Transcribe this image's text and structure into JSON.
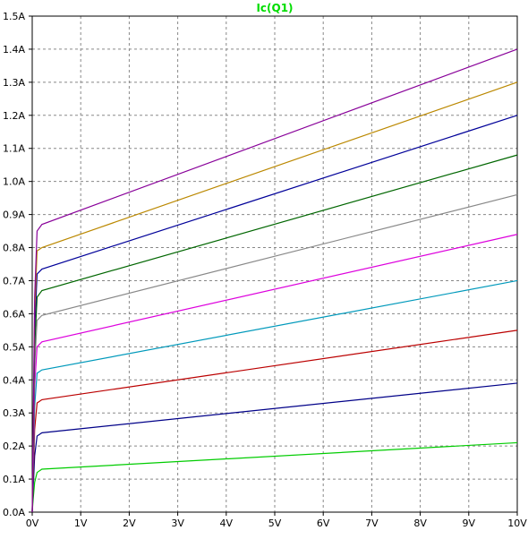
{
  "chart_data": {
    "type": "line",
    "title": "Ic(Q1)",
    "title_color": "#00dd00",
    "xlabel": "",
    "ylabel": "",
    "xlim": [
      0,
      10
    ],
    "ylim": [
      0,
      1.5
    ],
    "grid": true,
    "x_ticks": [
      0,
      1,
      2,
      3,
      4,
      5,
      6,
      7,
      8,
      9,
      10
    ],
    "x_tick_labels": [
      "0V",
      "1V",
      "2V",
      "3V",
      "4V",
      "5V",
      "6V",
      "7V",
      "8V",
      "9V",
      "10V"
    ],
    "y_ticks": [
      0,
      0.1,
      0.2,
      0.3,
      0.4,
      0.5,
      0.6,
      0.7,
      0.8,
      0.9,
      1.0,
      1.1,
      1.2,
      1.3,
      1.4,
      1.5
    ],
    "y_tick_labels": [
      "0.0A",
      "0.1A",
      "0.2A",
      "0.3A",
      "0.4A",
      "0.5A",
      "0.6A",
      "0.7A",
      "0.8A",
      "0.9A",
      "1.0A",
      "1.1A",
      "1.2A",
      "1.3A",
      "1.4A",
      "1.5A"
    ],
    "series": [
      {
        "color": "#00cc00",
        "x": [
          0,
          0.02,
          0.05,
          0.1,
          0.2,
          10
        ],
        "y": [
          0,
          0.04,
          0.09,
          0.12,
          0.13,
          0.21
        ]
      },
      {
        "color": "#000088",
        "x": [
          0,
          0.02,
          0.05,
          0.1,
          0.2,
          10
        ],
        "y": [
          0,
          0.07,
          0.17,
          0.23,
          0.24,
          0.39
        ]
      },
      {
        "color": "#bb0000",
        "x": [
          0,
          0.02,
          0.05,
          0.1,
          0.2,
          10
        ],
        "y": [
          0,
          0.1,
          0.25,
          0.33,
          0.34,
          0.55
        ]
      },
      {
        "color": "#0099bb",
        "x": [
          0,
          0.02,
          0.05,
          0.1,
          0.2,
          10
        ],
        "y": [
          0,
          0.13,
          0.32,
          0.42,
          0.43,
          0.7
        ]
      },
      {
        "color": "#dd00dd",
        "x": [
          0,
          0.02,
          0.05,
          0.1,
          0.2,
          10
        ],
        "y": [
          0,
          0.15,
          0.38,
          0.5,
          0.515,
          0.84
        ]
      },
      {
        "color": "#888888",
        "x": [
          0,
          0.02,
          0.05,
          0.1,
          0.2,
          10
        ],
        "y": [
          0,
          0.18,
          0.44,
          0.58,
          0.595,
          0.96
        ]
      },
      {
        "color": "#006600",
        "x": [
          0,
          0.02,
          0.05,
          0.1,
          0.2,
          10
        ],
        "y": [
          0,
          0.2,
          0.5,
          0.65,
          0.67,
          1.08
        ]
      },
      {
        "color": "#000099",
        "x": [
          0,
          0.02,
          0.05,
          0.1,
          0.2,
          10
        ],
        "y": [
          0,
          0.22,
          0.55,
          0.72,
          0.735,
          1.2
        ]
      },
      {
        "color": "#bb8800",
        "x": [
          0,
          0.02,
          0.05,
          0.1,
          0.2,
          10
        ],
        "y": [
          0,
          0.24,
          0.6,
          0.79,
          0.8,
          1.3
        ]
      },
      {
        "color": "#880099",
        "x": [
          0,
          0.02,
          0.05,
          0.1,
          0.2,
          10
        ],
        "y": [
          0,
          0.26,
          0.65,
          0.85,
          0.87,
          1.4
        ]
      }
    ]
  }
}
